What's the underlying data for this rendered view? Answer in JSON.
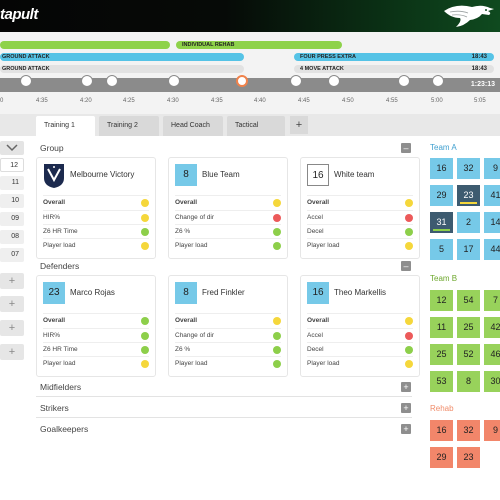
{
  "app": {
    "logo": "tapult"
  },
  "timeline": {
    "bars": [
      {
        "label": "",
        "time": ""
      },
      {
        "label": "INDIVIDUAL REHAB",
        "time": ""
      },
      {
        "label": "GROUND ATTACK",
        "time": ""
      },
      {
        "label": "FOUR PRESS EXTRA",
        "time": "18:43"
      },
      {
        "label": "GROUND ATTACK",
        "time": ""
      },
      {
        "label": "4 MOVE ATTACK",
        "time": "18:43"
      }
    ],
    "total_time": "1:23:13",
    "ticks": [
      "0",
      "4:35",
      "4:20",
      "4:25",
      "4:30",
      "4:35",
      "4:40",
      "4:45",
      "4:50",
      "4:55",
      "5:00",
      "5:05"
    ]
  },
  "tabs": [
    "Training 1",
    "Training 2",
    "Head Coach",
    "Tactical"
  ],
  "tab_add": "+",
  "left_panel": {
    "numbers": [
      "12",
      "11",
      "10",
      "09",
      "08",
      "07"
    ],
    "plus": [
      "+",
      "+",
      "+",
      "+"
    ]
  },
  "groups": {
    "group": {
      "title": "Group",
      "toggle": "–",
      "cards": [
        {
          "number": "",
          "name": "Melbourne Victory",
          "rows": [
            {
              "label": "Overall",
              "status": "yellow"
            },
            {
              "label": "HIR%",
              "status": "yellow"
            },
            {
              "label": "Z6 HR Time",
              "status": "green"
            },
            {
              "label": "Player load",
              "status": "yellow"
            }
          ]
        },
        {
          "number": "8",
          "name": "Blue Team",
          "rows": [
            {
              "label": "Overall",
              "status": "yellow"
            },
            {
              "label": "Change of dir",
              "status": "red"
            },
            {
              "label": "Z6 %",
              "status": "green"
            },
            {
              "label": "Player load",
              "status": "green"
            }
          ]
        },
        {
          "number": "16",
          "name": "White team",
          "rows": [
            {
              "label": "Overall",
              "status": "yellow"
            },
            {
              "label": "Accel",
              "status": "red"
            },
            {
              "label": "Decel",
              "status": "green"
            },
            {
              "label": "Player load",
              "status": "yellow"
            }
          ]
        }
      ]
    },
    "defenders": {
      "title": "Defenders",
      "toggle": "–",
      "cards": [
        {
          "number": "23",
          "name": "Marco Rojas",
          "rows": [
            {
              "label": "Overall",
              "status": "green"
            },
            {
              "label": "HIR%",
              "status": "green"
            },
            {
              "label": "Z6 HR Time",
              "status": "green"
            },
            {
              "label": "Player load",
              "status": "yellow"
            }
          ]
        },
        {
          "number": "8",
          "name": "Fred Finkler",
          "rows": [
            {
              "label": "Overall",
              "status": "yellow"
            },
            {
              "label": "Change of dir",
              "status": "green"
            },
            {
              "label": "Z6 %",
              "status": "green"
            },
            {
              "label": "Player load",
              "status": "green"
            }
          ]
        },
        {
          "number": "16",
          "name": "Theo Markellis",
          "rows": [
            {
              "label": "Overall",
              "status": "yellow"
            },
            {
              "label": "Accel",
              "status": "red"
            },
            {
              "label": "Decel",
              "status": "green"
            },
            {
              "label": "Player load",
              "status": "yellow"
            }
          ]
        }
      ]
    },
    "collapsed": [
      {
        "title": "Midfielders",
        "toggle": "+"
      },
      {
        "title": "Strikers",
        "toggle": "+"
      },
      {
        "title": "Goalkeepers",
        "toggle": "+"
      }
    ]
  },
  "teams": {
    "team_a": {
      "title": "Team A",
      "numbers": [
        "16",
        "32",
        "9",
        "29",
        "23",
        "41",
        "31",
        "2",
        "14",
        "5",
        "17",
        "44"
      ]
    },
    "team_b": {
      "title": "Team B",
      "numbers": [
        "12",
        "54",
        "7",
        "11",
        "25",
        "42",
        "25",
        "52",
        "46",
        "53",
        "8",
        "30"
      ]
    },
    "rehab": {
      "title": "Rehab",
      "numbers": [
        "16",
        "32",
        "9",
        "29",
        "23"
      ]
    }
  },
  "colors": {
    "green": "#8dcf4a",
    "yellow": "#f5d73b",
    "red": "#ec5a5a",
    "team_a": "#3f9fcf",
    "team_b": "#6ea82e",
    "rehab": "#f08c6a"
  }
}
